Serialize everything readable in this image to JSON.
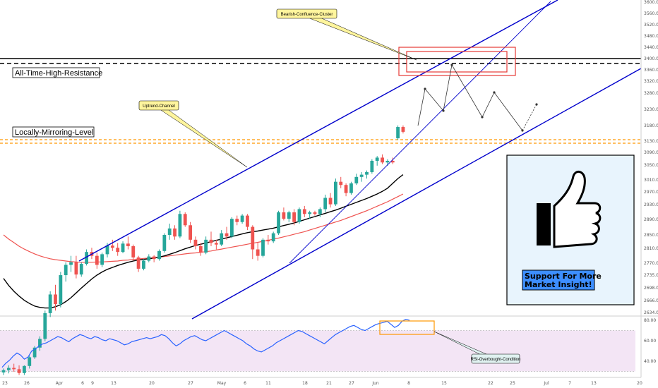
{
  "chart_data": {
    "type": "candlestick",
    "price_axis": {
      "ticks": [
        "3600.00",
        "3560.00",
        "3520.00",
        "3480.00",
        "3440.00",
        "3400.00",
        "3360.00",
        "3320.00",
        "3280.00",
        "3230.00",
        "3180.00",
        "3130.00",
        "3090.00",
        "3050.00",
        "3010.00",
        "2970.00",
        "2930.00",
        "2890.00",
        "2850.00",
        "2810.00",
        "2770.00",
        "2735.00",
        "2698.00",
        "2666.00",
        "2634.00"
      ]
    },
    "rsi_axis": {
      "ticks": [
        "80.00",
        "60.00",
        "40.00"
      ]
    },
    "time_axis": {
      "ticks": [
        "23",
        "26",
        "Apr",
        "6",
        "9",
        "13",
        "20",
        "27",
        "May",
        "6",
        "11",
        "18",
        "21",
        "27",
        "Jun",
        "8",
        "15",
        "22",
        "25",
        "Jul",
        "7",
        "13",
        "20"
      ]
    },
    "candles": [
      [
        2448,
        2460,
        2440,
        2455
      ],
      [
        2455,
        2470,
        2445,
        2462
      ],
      [
        2462,
        2475,
        2450,
        2458
      ],
      [
        2458,
        2470,
        2440,
        2446
      ],
      [
        2446,
        2470,
        2440,
        2468
      ],
      [
        2468,
        2500,
        2460,
        2495
      ],
      [
        2495,
        2530,
        2490,
        2525
      ],
      [
        2525,
        2560,
        2515,
        2552
      ],
      [
        2552,
        2640,
        2545,
        2632
      ],
      [
        2632,
        2700,
        2620,
        2690
      ],
      [
        2690,
        2720,
        2640,
        2660
      ],
      [
        2660,
        2760,
        2650,
        2750
      ],
      [
        2750,
        2790,
        2730,
        2782
      ],
      [
        2782,
        2810,
        2760,
        2790
      ],
      [
        2790,
        2810,
        2740,
        2752
      ],
      [
        2752,
        2790,
        2745,
        2785
      ],
      [
        2785,
        2830,
        2780,
        2822
      ],
      [
        2822,
        2835,
        2800,
        2810
      ],
      [
        2810,
        2820,
        2770,
        2782
      ],
      [
        2782,
        2820,
        2775,
        2815
      ],
      [
        2815,
        2850,
        2805,
        2842
      ],
      [
        2842,
        2860,
        2825,
        2835
      ],
      [
        2835,
        2850,
        2810,
        2822
      ],
      [
        2822,
        2855,
        2818,
        2848
      ],
      [
        2848,
        2870,
        2830,
        2840
      ],
      [
        2840,
        2845,
        2795,
        2805
      ],
      [
        2805,
        2810,
        2760,
        2770
      ],
      [
        2770,
        2800,
        2765,
        2795
      ],
      [
        2795,
        2815,
        2790,
        2808
      ],
      [
        2808,
        2812,
        2790,
        2800
      ],
      [
        2800,
        2830,
        2795,
        2825
      ],
      [
        2825,
        2880,
        2820,
        2875
      ],
      [
        2875,
        2910,
        2860,
        2895
      ],
      [
        2895,
        2905,
        2860,
        2870
      ],
      [
        2870,
        2950,
        2865,
        2940
      ],
      [
        2940,
        2945,
        2900,
        2905
      ],
      [
        2905,
        2915,
        2850,
        2860
      ],
      [
        2860,
        2870,
        2830,
        2840
      ],
      [
        2840,
        2850,
        2810,
        2820
      ],
      [
        2820,
        2870,
        2815,
        2860
      ],
      [
        2860,
        2885,
        2840,
        2850
      ],
      [
        2850,
        2860,
        2830,
        2845
      ],
      [
        2845,
        2890,
        2840,
        2880
      ],
      [
        2880,
        2900,
        2860,
        2870
      ],
      [
        2870,
        2930,
        2865,
        2925
      ],
      [
        2925,
        2935,
        2905,
        2915
      ],
      [
        2915,
        2940,
        2910,
        2935
      ],
      [
        2935,
        2940,
        2890,
        2900
      ],
      [
        2900,
        2905,
        2800,
        2830
      ],
      [
        2830,
        2850,
        2795,
        2810
      ],
      [
        2810,
        2865,
        2805,
        2860
      ],
      [
        2860,
        2875,
        2845,
        2855
      ],
      [
        2855,
        2885,
        2850,
        2880
      ],
      [
        2880,
        2950,
        2875,
        2945
      ],
      [
        2945,
        2960,
        2920,
        2925
      ],
      [
        2925,
        2950,
        2915,
        2945
      ],
      [
        2945,
        2955,
        2905,
        2915
      ],
      [
        2915,
        2960,
        2910,
        2955
      ],
      [
        2955,
        2965,
        2930,
        2940
      ],
      [
        2940,
        2950,
        2925,
        2945
      ],
      [
        2945,
        2950,
        2935,
        2940
      ],
      [
        2940,
        2960,
        2930,
        2955
      ],
      [
        2955,
        3000,
        2945,
        2990
      ],
      [
        2990,
        3005,
        2960,
        2970
      ],
      [
        2970,
        3050,
        2965,
        3040
      ],
      [
        3040,
        3055,
        3020,
        3030
      ],
      [
        3030,
        3035,
        2995,
        3005
      ],
      [
        3005,
        3040,
        3000,
        3035
      ],
      [
        3035,
        3065,
        3030,
        3055
      ],
      [
        3055,
        3070,
        3040,
        3062
      ],
      [
        3062,
        3075,
        3050,
        3070
      ],
      [
        3070,
        3110,
        3065,
        3105
      ],
      [
        3105,
        3120,
        3090,
        3115
      ],
      [
        3115,
        3125,
        3095,
        3100
      ],
      [
        3100,
        3110,
        3090,
        3105
      ],
      [
        3105,
        3115,
        3095,
        3100
      ],
      [
        3175,
        3215,
        3170,
        3210
      ],
      [
        3210,
        3215,
        3190,
        3195
      ]
    ],
    "ma_slow": [
      2875,
      2862,
      2851,
      2840,
      2831,
      2823,
      2816,
      2810,
      2805,
      2801,
      2798,
      2796,
      2794,
      2792,
      2791,
      2790,
      2790,
      2790,
      2791,
      2791,
      2792,
      2793,
      2794,
      2796,
      2797,
      2799,
      2800,
      2802,
      2803,
      2804,
      2806,
      2808,
      2810,
      2812,
      2814,
      2816,
      2818,
      2819,
      2821,
      2823,
      2825,
      2828,
      2831,
      2834,
      2837,
      2840,
      2843,
      2846,
      2849,
      2852,
      2855,
      2858,
      2862,
      2865,
      2869,
      2873,
      2877,
      2881,
      2885,
      2890,
      2895,
      2900,
      2905,
      2910,
      2915,
      2920,
      2926,
      2932,
      2938,
      2944,
      2950,
      2957,
      2964,
      2971,
      2978,
      2986,
      2994,
      3002
    ],
    "ma_fast": [
      2740,
      2718,
      2700,
      2685,
      2672,
      2662,
      2654,
      2650,
      2648,
      2648,
      2652,
      2658,
      2668,
      2680,
      2695,
      2710,
      2724,
      2738,
      2750,
      2760,
      2768,
      2774,
      2780,
      2785,
      2790,
      2794,
      2797,
      2799,
      2801,
      2803,
      2806,
      2810,
      2815,
      2820,
      2826,
      2832,
      2837,
      2842,
      2846,
      2850,
      2854,
      2858,
      2862,
      2866,
      2870,
      2874,
      2878,
      2882,
      2885,
      2887,
      2890,
      2893,
      2896,
      2900,
      2904,
      2908,
      2912,
      2917,
      2922,
      2927,
      2932,
      2937,
      2942,
      2947,
      2952,
      2958,
      2964,
      2970,
      2976,
      2982,
      2988,
      2995,
      3002,
      3010,
      3020,
      3035,
      3050,
      3062
    ],
    "rsi": [
      34,
      38,
      41,
      45,
      48,
      46,
      42,
      44,
      50,
      52,
      55,
      57,
      58,
      60,
      62,
      64,
      63,
      61,
      59,
      62,
      64,
      66,
      65,
      63,
      62,
      64,
      63,
      61,
      60,
      62,
      61,
      60,
      58,
      56,
      57,
      59,
      60,
      61,
      62,
      63,
      62,
      63,
      64,
      66,
      65,
      62,
      58,
      55,
      57,
      60,
      62,
      64,
      65,
      63,
      61,
      60,
      62,
      64,
      66,
      68,
      70,
      68,
      66,
      64,
      62,
      60,
      57,
      55,
      52,
      50,
      49,
      51,
      53,
      55,
      58,
      60,
      62,
      64,
      66,
      68,
      70,
      69,
      67,
      65,
      63,
      61,
      59,
      57,
      60,
      63,
      66,
      68,
      70,
      72,
      74,
      75,
      73,
      71,
      70,
      72,
      74,
      76,
      77,
      78,
      79,
      76,
      73,
      75,
      79,
      81,
      80
    ],
    "annotations": {
      "all_time_high": "All-Time-High-Resistance",
      "locally_mirroring": "Locally-Mirroring-Level",
      "uptrend_channel": "Uptrend-Channel",
      "bearish_cluster": "Bearish-Confluence-Cluster",
      "rsi_overbought": "RSI-Overbought-Condition",
      "support_line1": "Support For More",
      "support_line2": "Market Insight!"
    },
    "colors": {
      "up": "#26a69a",
      "down": "#ef5350",
      "channel": "#0000cc",
      "ma_slow": "#ef5350",
      "ma_fast": "#000000",
      "rsi_line": "#2962ff",
      "rsi_band": "#f3e5f5",
      "level_orange": "#ff9800",
      "resistance_box": "#e53935",
      "callout_fill": "#fff59d",
      "promo_fill": "#e8f4fd",
      "promo_label": "#3d8eff"
    }
  }
}
